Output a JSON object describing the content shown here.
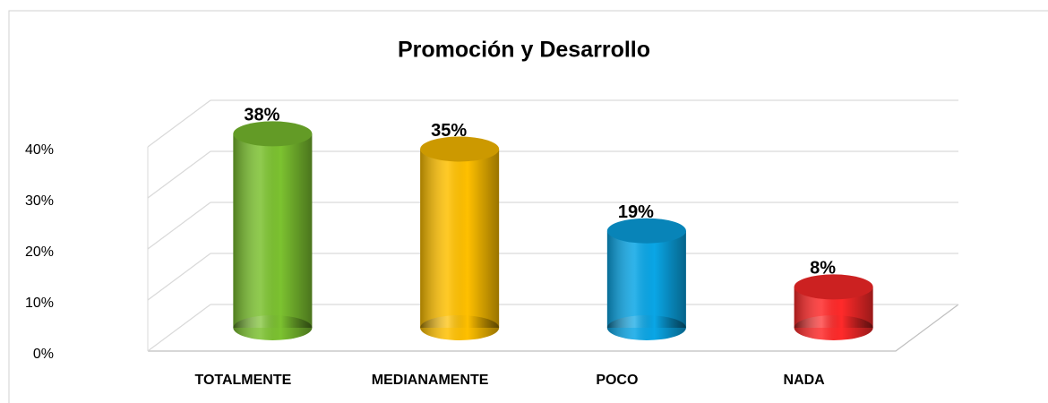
{
  "chart_data": {
    "type": "bar3d",
    "title": "Promoción y Desarrollo",
    "categories": [
      "TOTALMENTE",
      "MEDIANAMENTE",
      "POCO",
      "NADA"
    ],
    "values": [
      38,
      35,
      19,
      8
    ],
    "value_labels": [
      "38%",
      "35%",
      "19%",
      "8%"
    ],
    "colors": [
      "#7cc230",
      "#ffc000",
      "#0aa6e6",
      "#ff2a2a"
    ],
    "ylim": [
      0,
      40
    ],
    "yticks": [
      {
        "value": 0,
        "label": "0%"
      },
      {
        "value": 10,
        "label": "10%"
      },
      {
        "value": 20,
        "label": "20%"
      },
      {
        "value": 30,
        "label": "30%"
      },
      {
        "value": 40,
        "label": "40%"
      }
    ],
    "grid": true
  }
}
